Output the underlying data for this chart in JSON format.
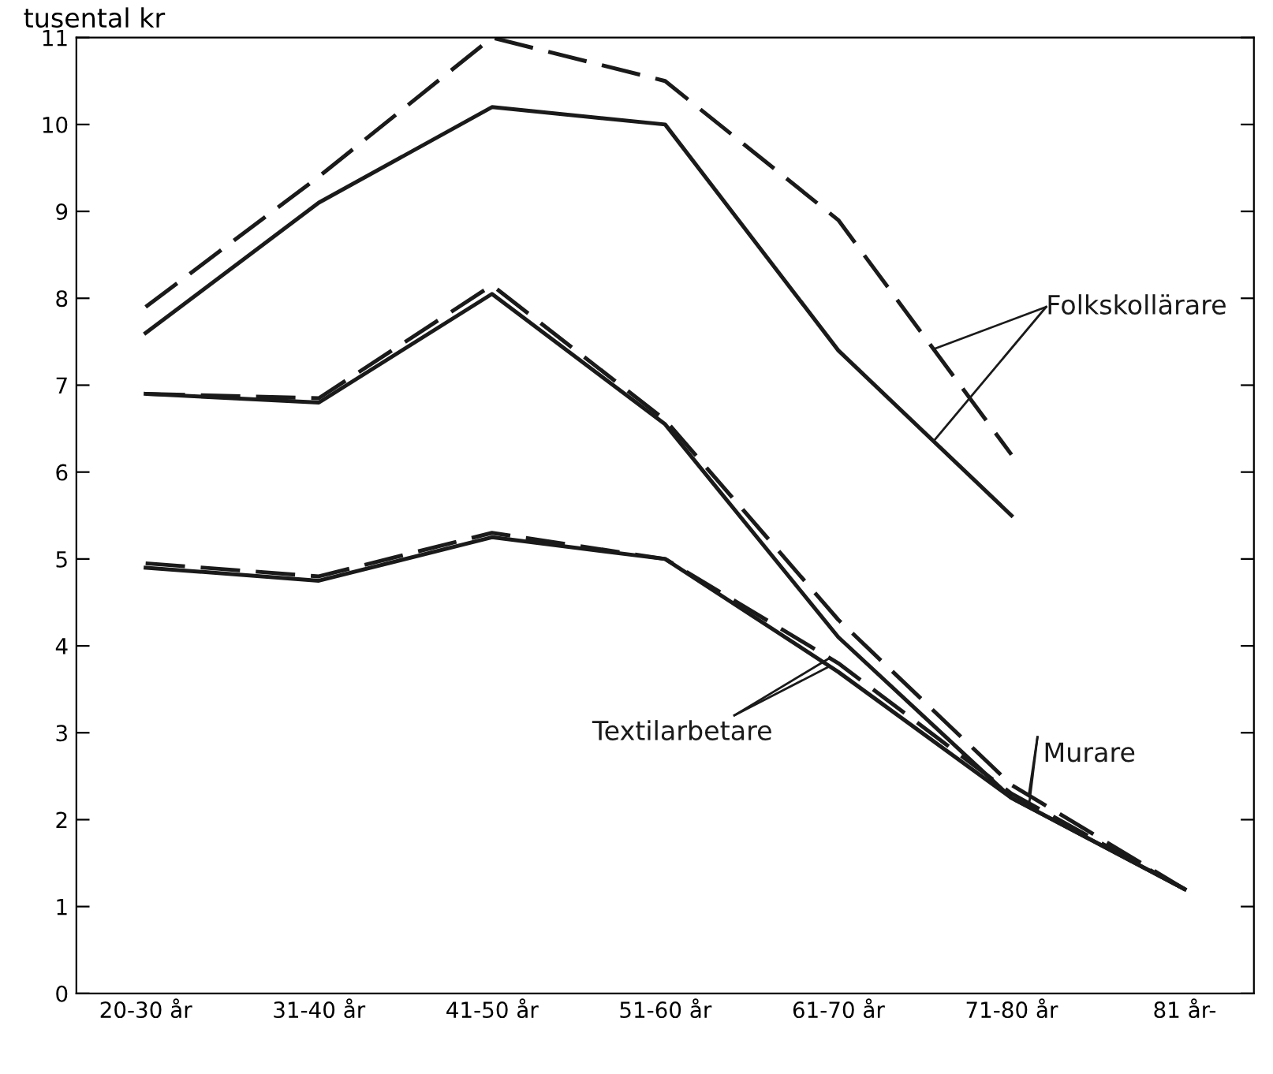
{
  "chart_data": {
    "type": "line",
    "ylabel": "tusental kr",
    "categories": [
      "20-30 år",
      "31-40 år",
      "41-50 år",
      "51-60 år",
      "61-70 år",
      "71-80 år",
      "81 år-"
    ],
    "series": [
      {
        "color": "#1a1a1a",
        "line_style": "dashed",
        "values": [
          7.9,
          9.4,
          11.0,
          10.5,
          8.9,
          6.2,
          null
        ]
      },
      {
        "name": "Folkskollärare",
        "color": "#1a1a1a",
        "line_style": "solid",
        "values": [
          7.6,
          9.1,
          10.2,
          10.0,
          7.4,
          5.5,
          null
        ]
      },
      {
        "color": "#1a1a1a",
        "line_style": "dashed",
        "values": [
          6.9,
          6.85,
          8.15,
          6.6,
          4.3,
          2.4,
          1.2
        ]
      },
      {
        "name": "Murare",
        "color": "#1a1a1a",
        "line_style": "solid",
        "values": [
          6.9,
          6.8,
          8.05,
          6.55,
          4.1,
          2.25,
          1.2
        ]
      },
      {
        "color": "#1a1a1a",
        "line_style": "dashed",
        "values": [
          4.95,
          4.8,
          5.3,
          5.0,
          3.8,
          2.3,
          1.2
        ]
      },
      {
        "name": "Textilarbetare",
        "color": "#1a1a1a",
        "line_style": "solid",
        "values": [
          4.9,
          4.75,
          5.25,
          5.0,
          3.7,
          2.25,
          1.2
        ]
      }
    ],
    "ylim": [
      0,
      11
    ],
    "yticks": [
      0,
      1,
      2,
      3,
      4,
      5,
      6,
      7,
      8,
      9,
      10,
      11
    ],
    "grid": false
  }
}
